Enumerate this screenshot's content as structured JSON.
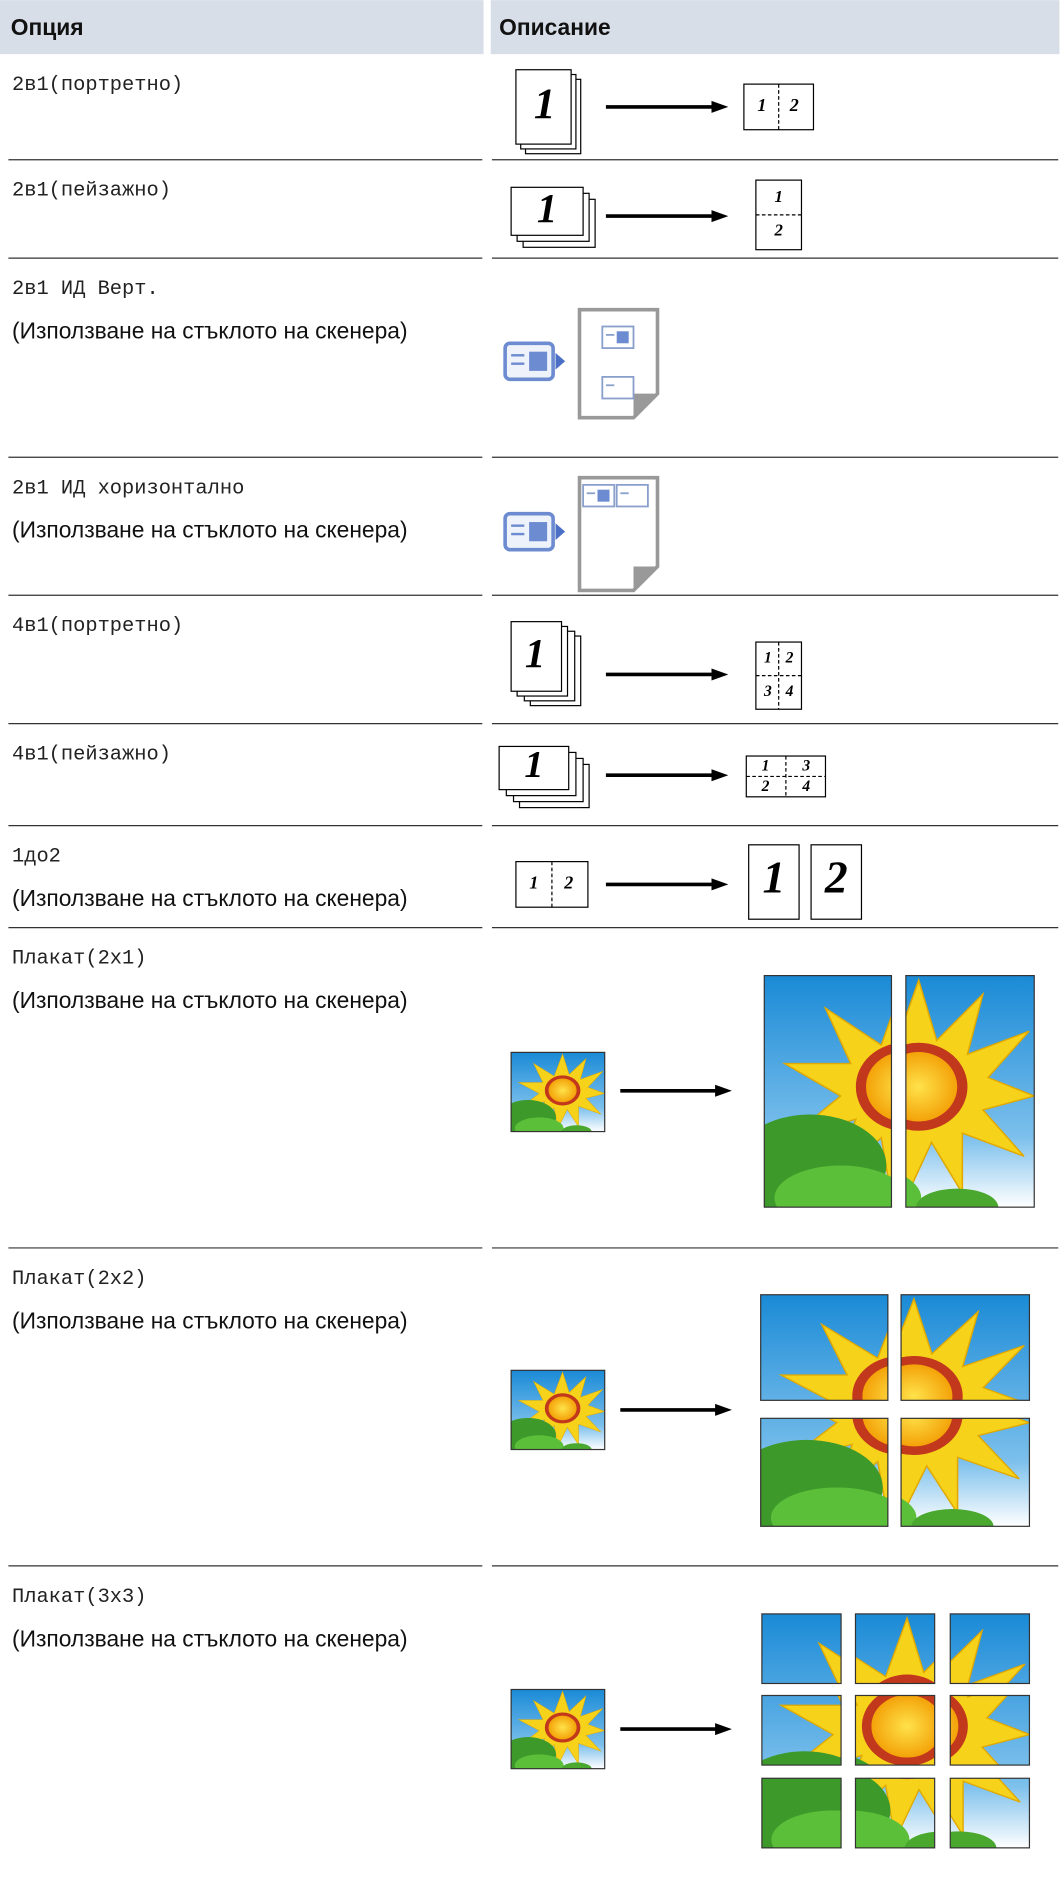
{
  "header": {
    "option": "Опция",
    "description": "Описание"
  },
  "rows": [
    {
      "option": "2в1(портретно)",
      "figure": [
        "1",
        "1",
        "2"
      ]
    },
    {
      "option": "2в1(пейзажно)",
      "figure": [
        "1",
        "1",
        "2"
      ]
    },
    {
      "option": "2в1 ИД Верт.",
      "note": "(Използване на стъклото на скенера)"
    },
    {
      "option": "2в1 ИД хоризонтално",
      "note": "(Използване на стъклото на скенера)"
    },
    {
      "option": "4в1(портретно)",
      "figure": [
        "1",
        "1",
        "2",
        "3",
        "4"
      ]
    },
    {
      "option": "4в1(пейзажно)",
      "figure": [
        "1",
        "1",
        "3",
        "2",
        "4"
      ]
    },
    {
      "option": "1до2",
      "note": "(Използване на стъклото на скенера)",
      "figure": [
        "1",
        "2",
        "1",
        "2"
      ]
    },
    {
      "option": "Плакат(2x1)",
      "note": "(Използване на стъклото на скенера)"
    },
    {
      "option": "Плакат(2x2)",
      "note": "(Използване на стъклото на скенера)"
    },
    {
      "option": "Плакат(3x3)",
      "note": "(Използване на стъклото на скенера)"
    }
  ]
}
